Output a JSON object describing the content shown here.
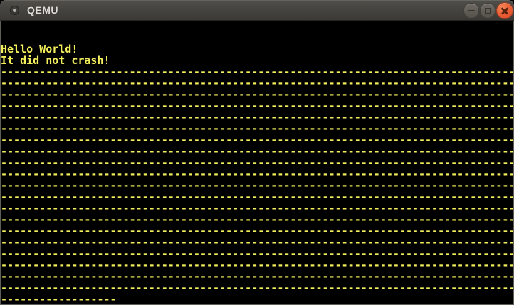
{
  "window": {
    "title": "QEMU",
    "icon": "qemu-app-icon",
    "controls": {
      "minimize": "Minimize",
      "maximize": "Maximize",
      "close": "Close"
    }
  },
  "theme": {
    "titlebar_top": "#524f4a",
    "titlebar_bottom": "#3a3935",
    "title_color": "#e0ddd7",
    "button_gray": "#605c55",
    "close_button_orange": "#e95a31",
    "console_background": "#000000",
    "console_text_yellow": "#f2ee5c",
    "window_border": "#5f5d58"
  },
  "console": {
    "cols": 80,
    "rows": 25,
    "lines": [
      "",
      "",
      "Hello World!",
      "It did not crash!",
      "--------------------------------------------------------------------------------",
      "--------------------------------------------------------------------------------",
      "--------------------------------------------------------------------------------",
      "--------------------------------------------------------------------------------",
      "--------------------------------------------------------------------------------",
      "--------------------------------------------------------------------------------",
      "--------------------------------------------------------------------------------",
      "--------------------------------------------------------------------------------",
      "--------------------------------------------------------------------------------",
      "--------------------------------------------------------------------------------",
      "--------------------------------------------------------------------------------",
      "--------------------------------------------------------------------------------",
      "--------------------------------------------------------------------------------",
      "--------------------------------------------------------------------------------",
      "--------------------------------------------------------------------------------",
      "--------------------------------------------------------------------------------",
      "--------------------------------------------------------------------------------",
      "--------------------------------------------------------------------------------",
      "--------------------------------------------------------------------------------",
      "--------------------------------------------------------------------------------",
      "------------------"
    ]
  }
}
